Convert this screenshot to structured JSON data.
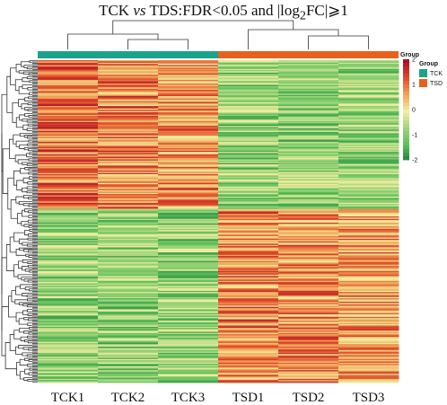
{
  "title": {
    "prefix": "TCK ",
    "vs": "vs",
    "mid": " TDS:FDR<0.05 and |log",
    "sub": "2",
    "suffix": "FC|⩾1"
  },
  "chart_data": {
    "type": "heatmap",
    "columns": [
      "TCK1",
      "TCK2",
      "TCK3",
      "TSD1",
      "TSD2",
      "TSD3"
    ],
    "groups": [
      {
        "name": "TCK",
        "color": "#1aa38a",
        "columns": [
          "TCK1",
          "TCK2",
          "TCK3"
        ]
      },
      {
        "name": "TSD",
        "color": "#e8611c",
        "columns": [
          "TSD1",
          "TSD2",
          "TSD3"
        ]
      }
    ],
    "value_range": [
      -2,
      2
    ],
    "color_scale": [
      "#1e7e3a",
      "#5cc05c",
      "#9fd47a",
      "#f3eea0",
      "#f2a457",
      "#e04a2a",
      "#a8102a"
    ],
    "legend_ticks": [
      2,
      1,
      0,
      -1,
      -2
    ],
    "legend_title": "Group",
    "group_legend_title": "Group",
    "blocks": [
      {
        "rows": 0.46,
        "values": [
          1.0,
          0.9,
          0.7,
          -0.8,
          -0.8,
          -0.8
        ]
      },
      {
        "rows": 0.54,
        "values": [
          -0.8,
          -0.8,
          -0.8,
          0.9,
          0.8,
          0.7
        ]
      }
    ]
  }
}
